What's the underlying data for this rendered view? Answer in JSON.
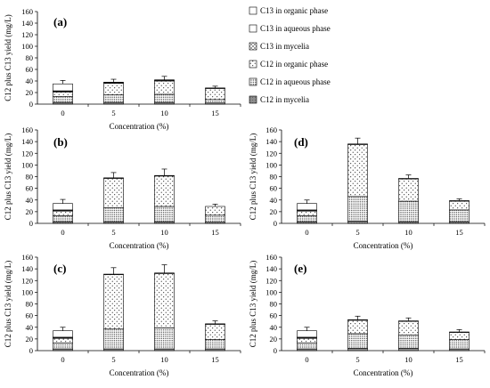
{
  "legend": [
    {
      "label": "C13 in organic phase",
      "pattern": "blank"
    },
    {
      "label": "C13 in aqueous phase",
      "pattern": "blank"
    },
    {
      "label": "C13 in mycelia",
      "pattern": "cross"
    },
    {
      "label": "C12 in organic phase",
      "pattern": "dots"
    },
    {
      "label": "C12 in aqueous phase",
      "pattern": "dense"
    },
    {
      "label": "C12 in mycelia",
      "pattern": "gray"
    }
  ],
  "chart_data": [
    {
      "type": "bar",
      "stacked": true,
      "panel_label": "(a)",
      "categories": [
        "0",
        "5",
        "10",
        "15"
      ],
      "xlabel": "Concentration (%)",
      "ylabel": "C12 plus C13 yield (mg/L)",
      "ylim": [
        0,
        160
      ],
      "yticks": [
        0,
        20,
        40,
        60,
        80,
        100,
        120,
        140,
        160
      ],
      "series": [
        {
          "name": "C12 in mycelia",
          "values": [
            3,
            3,
            3,
            2
          ]
        },
        {
          "name": "C12 in aqueous phase",
          "values": [
            10,
            13,
            14,
            6
          ]
        },
        {
          "name": "C12 in organic phase",
          "values": [
            8,
            20,
            23,
            19
          ]
        },
        {
          "name": "C13 in mycelia",
          "values": [
            1,
            1,
            1,
            1
          ]
        },
        {
          "name": "C13 in aqueous phase",
          "values": [
            1,
            1,
            1,
            0
          ]
        },
        {
          "name": "C13 in organic phase",
          "values": [
            12,
            0,
            0,
            0
          ]
        }
      ],
      "error": [
        6,
        5,
        6,
        3
      ]
    },
    {
      "type": "bar",
      "stacked": true,
      "panel_label": "(b)",
      "categories": [
        "0",
        "5",
        "10",
        "15"
      ],
      "xlabel": "Concentration (%)",
      "ylabel": "C12 plus C13 yield (mg/L)",
      "ylim": [
        0,
        160
      ],
      "yticks": [
        0,
        20,
        40,
        60,
        80,
        100,
        120,
        140,
        160
      ],
      "series": [
        {
          "name": "C12 in mycelia",
          "values": [
            3,
            3,
            3,
            2
          ]
        },
        {
          "name": "C12 in aqueous phase",
          "values": [
            10,
            24,
            26,
            12
          ]
        },
        {
          "name": "C12 in organic phase",
          "values": [
            8,
            50,
            52,
            15
          ]
        },
        {
          "name": "C13 in mycelia",
          "values": [
            1,
            1,
            1,
            0
          ]
        },
        {
          "name": "C13 in aqueous phase",
          "values": [
            1,
            0,
            0,
            0
          ]
        },
        {
          "name": "C13 in organic phase",
          "values": [
            11,
            0,
            0,
            0
          ]
        }
      ],
      "error": [
        7,
        9,
        11,
        4
      ]
    },
    {
      "type": "bar",
      "stacked": true,
      "panel_label": "(c)",
      "categories": [
        "0",
        "5",
        "10",
        "15"
      ],
      "xlabel": "Concentration (%)",
      "ylabel": "C12 plus C13 yield (mg/L)",
      "ylim": [
        0,
        160
      ],
      "yticks": [
        0,
        20,
        40,
        60,
        80,
        100,
        120,
        140,
        160
      ],
      "series": [
        {
          "name": "C12 in mycelia",
          "values": [
            3,
            3,
            3,
            3
          ]
        },
        {
          "name": "C12 in aqueous phase",
          "values": [
            10,
            34,
            36,
            16
          ]
        },
        {
          "name": "C12 in organic phase",
          "values": [
            8,
            93,
            93,
            26
          ]
        },
        {
          "name": "C13 in mycelia",
          "values": [
            1,
            1,
            1,
            1
          ]
        },
        {
          "name": "C13 in aqueous phase",
          "values": [
            1,
            0,
            0,
            0
          ]
        },
        {
          "name": "C13 in organic phase",
          "values": [
            11,
            0,
            0,
            0
          ]
        }
      ],
      "error": [
        6,
        11,
        14,
        5
      ]
    },
    {
      "type": "bar",
      "stacked": true,
      "panel_label": "(d)",
      "categories": [
        "0",
        "5",
        "10",
        "15"
      ],
      "xlabel": "Concentration (%)",
      "ylabel": "C12 plus C13 yield (mg/L)",
      "ylim": [
        0,
        160
      ],
      "yticks": [
        0,
        20,
        40,
        60,
        80,
        100,
        120,
        140,
        160
      ],
      "series": [
        {
          "name": "C12 in mycelia",
          "values": [
            3,
            4,
            3,
            3
          ]
        },
        {
          "name": "C12 in aqueous phase",
          "values": [
            10,
            42,
            35,
            20
          ]
        },
        {
          "name": "C12 in organic phase",
          "values": [
            8,
            89,
            38,
            15
          ]
        },
        {
          "name": "C13 in mycelia",
          "values": [
            1,
            1,
            1,
            1
          ]
        },
        {
          "name": "C13 in aqueous phase",
          "values": [
            1,
            0,
            0,
            0
          ]
        },
        {
          "name": "C13 in organic phase",
          "values": [
            11,
            0,
            0,
            0
          ]
        }
      ],
      "error": [
        6,
        10,
        6,
        3
      ]
    },
    {
      "type": "bar",
      "stacked": true,
      "panel_label": "(e)",
      "categories": [
        "0",
        "5",
        "10",
        "15"
      ],
      "xlabel": "Concentration (%)",
      "ylabel": "C12 plus C13 yield (mg/L)",
      "ylim": [
        0,
        160
      ],
      "yticks": [
        0,
        20,
        40,
        60,
        80,
        100,
        120,
        140,
        160
      ],
      "series": [
        {
          "name": "C12 in mycelia",
          "values": [
            3,
            4,
            4,
            3
          ]
        },
        {
          "name": "C12 in aqueous phase",
          "values": [
            10,
            25,
            23,
            16
          ]
        },
        {
          "name": "C12 in organic phase",
          "values": [
            8,
            23,
            23,
            12
          ]
        },
        {
          "name": "C13 in mycelia",
          "values": [
            1,
            1,
            1,
            1
          ]
        },
        {
          "name": "C13 in aqueous phase",
          "values": [
            1,
            0,
            0,
            0
          ]
        },
        {
          "name": "C13 in organic phase",
          "values": [
            11,
            0,
            0,
            0
          ]
        }
      ],
      "error": [
        6,
        6,
        5,
        4
      ]
    }
  ]
}
